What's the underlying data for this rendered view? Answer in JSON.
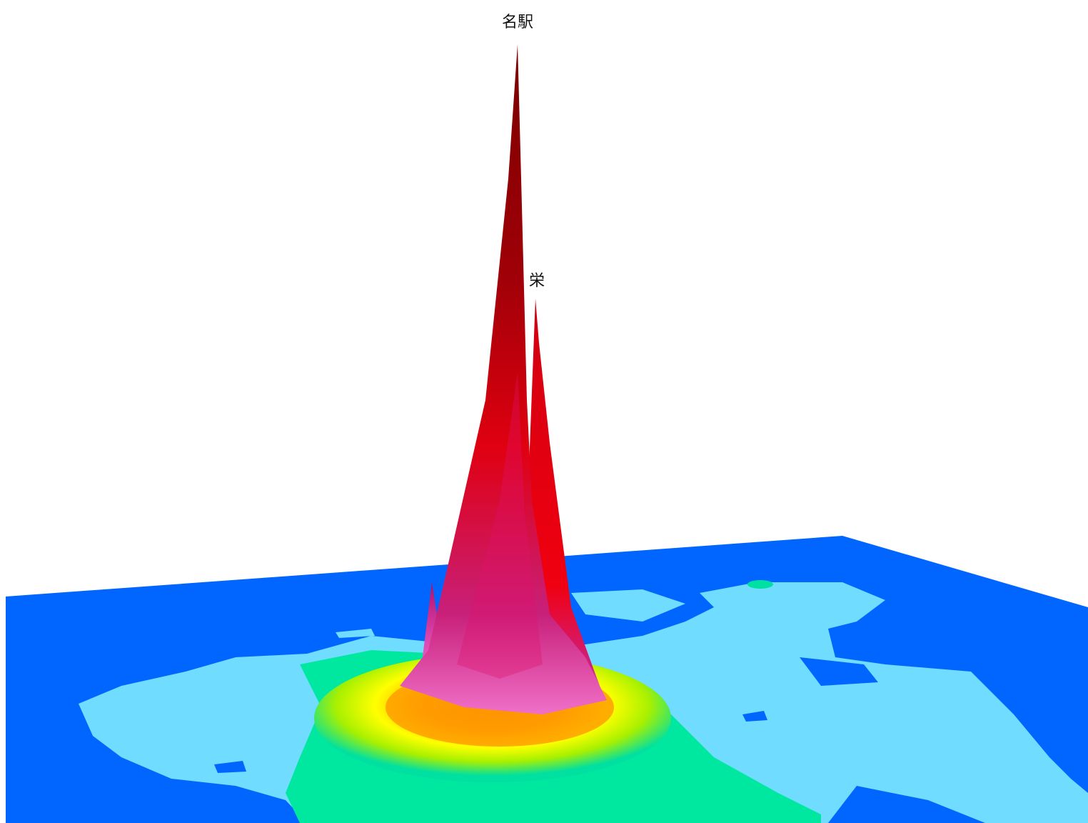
{
  "labels": [
    "名駅",
    "栄"
  ]
}
